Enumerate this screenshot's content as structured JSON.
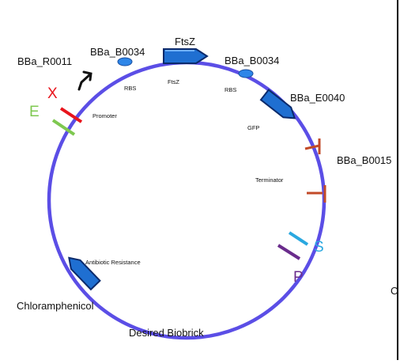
{
  "plasmid": {
    "name": "Desired Biobrick",
    "backbone_color": "#5b4ee6"
  },
  "parts": {
    "promoter": {
      "id": "BBa_R0011",
      "label": "Promoter"
    },
    "rbs1": {
      "id": "BBa_B0034",
      "label": "RBS"
    },
    "ftsz": {
      "name": "FtsZ",
      "label": "FtsZ"
    },
    "rbs2": {
      "id": "BBa_B0034",
      "label": "RBS"
    },
    "gfp": {
      "id": "BBa_E0040",
      "label": "GFP"
    },
    "terminator": {
      "id": "BBa_B0015",
      "label": "Terminator"
    },
    "resistance": {
      "name": "Chloramphenicol",
      "label": "Antibiotic Resistance"
    }
  },
  "sites": {
    "X": {
      "letter": "X",
      "color": "#e8141c"
    },
    "E": {
      "letter": "E",
      "color": "#7ec850"
    },
    "S": {
      "letter": "S",
      "color": "#2aa8e0"
    },
    "P": {
      "letter": "P",
      "color": "#6a2c8c"
    }
  },
  "edge_fragment": "C",
  "colors": {
    "cds": "#1f6fd1",
    "cds_dark": "#0b2a6b",
    "rbs": "#2e86e8",
    "terminator": "#c24a28"
  }
}
